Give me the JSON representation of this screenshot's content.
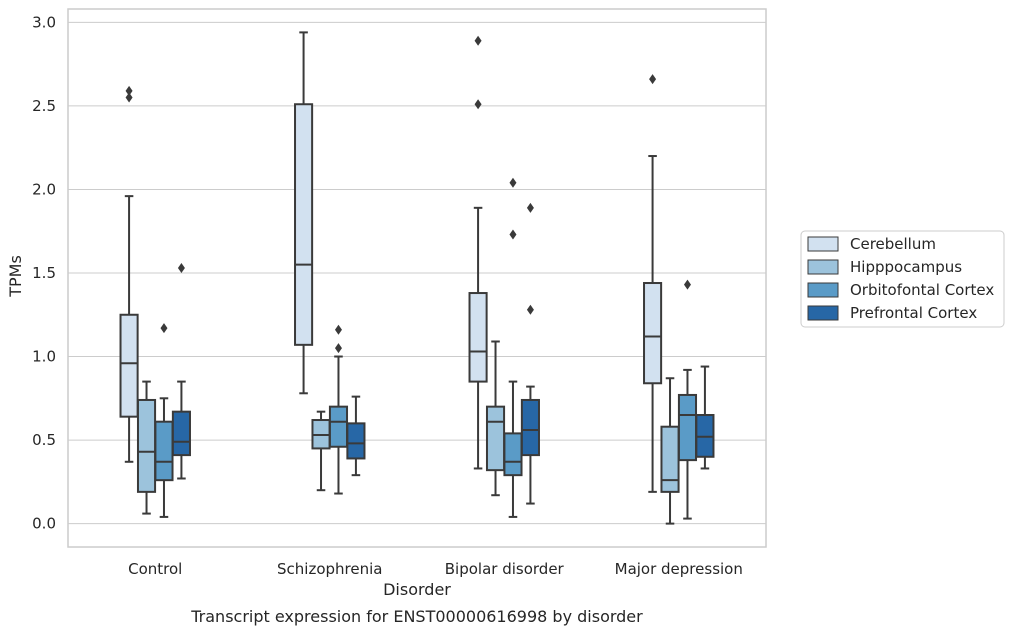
{
  "chart_data": {
    "type": "box",
    "xlabel": "Disorder",
    "ylabel": "TPMs",
    "caption": "Transcript expression for ENST00000616998 by disorder",
    "ylim": [
      -0.14,
      3.08
    ],
    "yticks": [
      "0.0",
      "0.5",
      "1.0",
      "1.5",
      "2.0",
      "2.5",
      "3.0"
    ],
    "grid": "horizontal",
    "legend_placement": "right",
    "categories": [
      "Control",
      "Schizophrenia",
      "Bipolar disorder",
      "Major depression"
    ],
    "series": [
      {
        "name": "Cerebellum",
        "color": "#d2e1f0",
        "boxes": [
          {
            "whisker_low": 0.37,
            "q1": 0.64,
            "median": 0.96,
            "q3": 1.25,
            "whisker_high": 1.96,
            "outliers": [
              2.55,
              2.59
            ]
          },
          {
            "whisker_low": 0.78,
            "q1": 1.07,
            "median": 1.55,
            "q3": 2.51,
            "whisker_high": 2.94,
            "outliers": []
          },
          {
            "whisker_low": 0.33,
            "q1": 0.85,
            "median": 1.03,
            "q3": 1.38,
            "whisker_high": 1.89,
            "outliers": [
              2.51,
              2.89
            ]
          },
          {
            "whisker_low": 0.19,
            "q1": 0.84,
            "median": 1.12,
            "q3": 1.44,
            "whisker_high": 2.2,
            "outliers": [
              2.66
            ]
          }
        ]
      },
      {
        "name": "Hipppocampus",
        "color": "#9cc3dc",
        "boxes": [
          {
            "whisker_low": 0.06,
            "q1": 0.19,
            "median": 0.43,
            "q3": 0.74,
            "whisker_high": 0.85,
            "outliers": []
          },
          {
            "whisker_low": 0.2,
            "q1": 0.45,
            "median": 0.53,
            "q3": 0.62,
            "whisker_high": 0.67,
            "outliers": []
          },
          {
            "whisker_low": 0.17,
            "q1": 0.32,
            "median": 0.61,
            "q3": 0.7,
            "whisker_high": 1.09,
            "outliers": []
          },
          {
            "whisker_low": 0.0,
            "q1": 0.19,
            "median": 0.26,
            "q3": 0.58,
            "whisker_high": 0.87,
            "outliers": []
          }
        ]
      },
      {
        "name": "Orbitofontal Cortex",
        "color": "#5a9bc7",
        "boxes": [
          {
            "whisker_low": 0.04,
            "q1": 0.26,
            "median": 0.37,
            "q3": 0.61,
            "whisker_high": 0.75,
            "outliers": [
              1.17
            ]
          },
          {
            "whisker_low": 0.18,
            "q1": 0.46,
            "median": 0.61,
            "q3": 0.7,
            "whisker_high": 1.0,
            "outliers": [
              1.05,
              1.16
            ]
          },
          {
            "whisker_low": 0.04,
            "q1": 0.29,
            "median": 0.37,
            "q3": 0.54,
            "whisker_high": 0.85,
            "outliers": [
              1.73,
              2.04
            ]
          },
          {
            "whisker_low": 0.03,
            "q1": 0.38,
            "median": 0.65,
            "q3": 0.77,
            "whisker_high": 0.92,
            "outliers": [
              1.43
            ]
          }
        ]
      },
      {
        "name": "Prefrontal Cortex",
        "color": "#2767a6",
        "boxes": [
          {
            "whisker_low": 0.27,
            "q1": 0.41,
            "median": 0.49,
            "q3": 0.67,
            "whisker_high": 0.85,
            "outliers": [
              1.53
            ]
          },
          {
            "whisker_low": 0.29,
            "q1": 0.39,
            "median": 0.48,
            "q3": 0.6,
            "whisker_high": 0.76,
            "outliers": []
          },
          {
            "whisker_low": 0.12,
            "q1": 0.41,
            "median": 0.56,
            "q3": 0.74,
            "whisker_high": 0.82,
            "outliers": [
              1.28,
              1.89
            ]
          },
          {
            "whisker_low": 0.33,
            "q1": 0.4,
            "median": 0.52,
            "q3": 0.65,
            "whisker_high": 0.94,
            "outliers": []
          }
        ]
      }
    ]
  }
}
